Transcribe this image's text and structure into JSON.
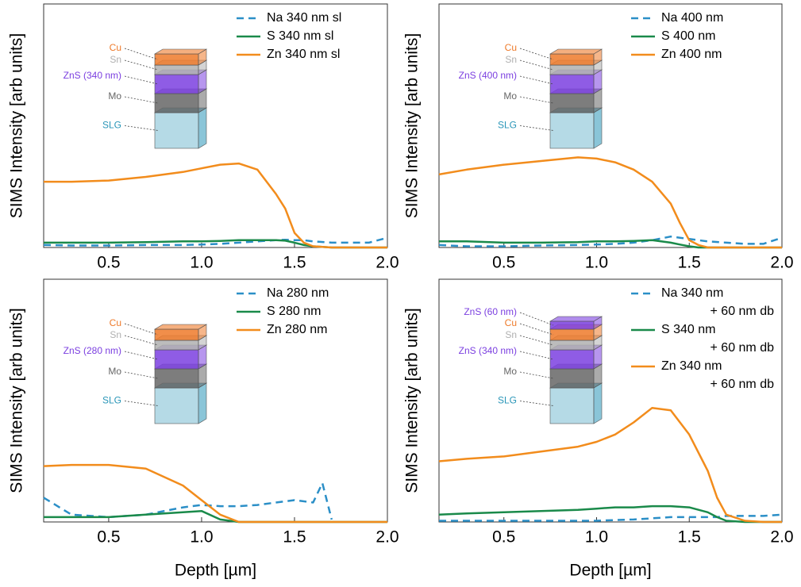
{
  "chart_data": [
    {
      "type": "line",
      "ylabel": "SIMS Intensity [arb units]",
      "xlim": [
        0.15,
        2.0
      ],
      "ylim": [
        0,
        1
      ],
      "xticks": [
        0.5,
        {
          "value": 1,
          "label": "1.0"
        },
        1.5,
        {
          "value": 2,
          "label": "2.0"
        }
      ],
      "legend": "upper right",
      "layers": [
        {
          "label": "Cu",
          "color": "#ee7a2a"
        },
        {
          "label": "Sn",
          "color": "#b0b0b0"
        },
        {
          "label": "ZnS (340 nm)",
          "color": "#7b3fe0"
        },
        {
          "label": "Mo",
          "color": "#666666"
        },
        {
          "label": "SLG",
          "color": "#2a96b8"
        }
      ],
      "x": [
        0.15,
        0.3,
        0.5,
        0.7,
        0.9,
        1.0,
        1.1,
        1.2,
        1.3,
        1.4,
        1.45,
        1.5,
        1.55,
        1.6,
        1.7,
        1.8,
        1.9,
        2.0
      ],
      "series": [
        {
          "name": "Na 340 nm sl",
          "color": "#2b8fc7",
          "dashed": true,
          "values": [
            0.01,
            0.008,
            0.008,
            0.01,
            0.01,
            0.012,
            0.015,
            0.02,
            0.025,
            0.03,
            0.032,
            0.03,
            0.03,
            0.025,
            0.02,
            0.02,
            0.02,
            0.04
          ]
        },
        {
          "name": "S 340 nm sl",
          "color": "#1a8a4a",
          "values": [
            0.02,
            0.02,
            0.02,
            0.022,
            0.025,
            0.025,
            0.027,
            0.03,
            0.03,
            0.03,
            0.028,
            0.02,
            0.01,
            0.005,
            0,
            0,
            0,
            0
          ]
        },
        {
          "name": "Zn 340 nm sl",
          "color": "#f28c1c",
          "values": [
            0.27,
            0.27,
            0.275,
            0.29,
            0.31,
            0.325,
            0.34,
            0.345,
            0.32,
            0.22,
            0.16,
            0.06,
            0.02,
            0.005,
            0,
            0,
            0,
            0
          ]
        }
      ]
    },
    {
      "type": "line",
      "ylabel": "SIMS Intensity [arb units]",
      "xlim": [
        0.15,
        2.0
      ],
      "ylim": [
        0,
        1
      ],
      "xticks": [
        0.5,
        {
          "value": 1,
          "label": "1.0"
        },
        1.5,
        {
          "value": 2,
          "label": "2.0"
        }
      ],
      "legend": "upper right",
      "layers": [
        {
          "label": "Cu",
          "color": "#ee7a2a"
        },
        {
          "label": "Sn",
          "color": "#b0b0b0"
        },
        {
          "label": "ZnS (400 nm)",
          "color": "#7b3fe0"
        },
        {
          "label": "Mo",
          "color": "#666666"
        },
        {
          "label": "SLG",
          "color": "#2a96b8"
        }
      ],
      "x": [
        0.15,
        0.3,
        0.5,
        0.7,
        0.9,
        1.0,
        1.1,
        1.2,
        1.3,
        1.4,
        1.45,
        1.5,
        1.55,
        1.6,
        1.7,
        1.8,
        1.9,
        2.0
      ],
      "series": [
        {
          "name": "Na 400 nm",
          "color": "#2b8fc7",
          "dashed": true,
          "values": [
            0.01,
            0.005,
            0.005,
            0.008,
            0.01,
            0.012,
            0.015,
            0.02,
            0.03,
            0.045,
            0.04,
            0.035,
            0.03,
            0.025,
            0.02,
            0.015,
            0.015,
            0.04
          ]
        },
        {
          "name": "S 400 nm",
          "color": "#1a8a4a",
          "values": [
            0.025,
            0.025,
            0.02,
            0.02,
            0.022,
            0.025,
            0.025,
            0.027,
            0.03,
            0.02,
            0.012,
            0.005,
            0,
            0,
            0,
            0,
            0,
            0
          ]
        },
        {
          "name": "Zn 400 nm",
          "color": "#f28c1c",
          "values": [
            0.3,
            0.32,
            0.34,
            0.355,
            0.37,
            0.365,
            0.35,
            0.32,
            0.27,
            0.18,
            0.1,
            0.03,
            0.01,
            0,
            0,
            0,
            0,
            0
          ]
        }
      ]
    },
    {
      "type": "line",
      "ylabel": "SIMS Intensity [arb units]",
      "xlabel": "Depth [µm]",
      "xlim": [
        0.15,
        2.0
      ],
      "ylim": [
        0,
        1
      ],
      "xticks": [
        0.5,
        {
          "value": 1,
          "label": "1.0"
        },
        1.5,
        {
          "value": 2,
          "label": "2.0"
        }
      ],
      "legend": "upper right",
      "layers": [
        {
          "label": "Cu",
          "color": "#ee7a2a"
        },
        {
          "label": "Sn",
          "color": "#b0b0b0"
        },
        {
          "label": "ZnS (280 nm)",
          "color": "#7b3fe0"
        },
        {
          "label": "Mo",
          "color": "#666666"
        },
        {
          "label": "SLG",
          "color": "#2a96b8"
        }
      ],
      "x": [
        0.15,
        0.3,
        0.5,
        0.7,
        0.9,
        1.0,
        1.1,
        1.2,
        1.3,
        1.4,
        1.5,
        1.6,
        1.65,
        1.7,
        1.8,
        1.9,
        2.0
      ],
      "series": [
        {
          "name": "Na 280 nm",
          "color": "#2b8fc7",
          "dashed": true,
          "values": [
            0.1,
            0.03,
            0.02,
            0.03,
            0.06,
            0.07,
            0.065,
            0.065,
            0.07,
            0.08,
            0.09,
            0.08,
            0.16,
            0.01,
            null,
            null,
            null
          ]
        },
        {
          "name": "S 280 nm",
          "color": "#1a8a4a",
          "values": [
            0.02,
            0.02,
            0.02,
            0.03,
            0.04,
            0.045,
            0.01,
            0,
            0,
            0,
            0,
            0,
            0,
            0,
            0,
            0,
            0
          ]
        },
        {
          "name": "Zn 280 nm",
          "color": "#f28c1c",
          "values": [
            0.23,
            0.235,
            0.235,
            0.22,
            0.15,
            0.09,
            0.03,
            0,
            0,
            0,
            0,
            0,
            0,
            0,
            0,
            0,
            0
          ]
        }
      ]
    },
    {
      "type": "line",
      "ylabel": "SIMS Intensity [arb units]",
      "xlabel": "Depth [µm]",
      "xlim": [
        0.15,
        2.0
      ],
      "ylim": [
        0,
        1
      ],
      "xticks": [
        0.5,
        {
          "value": 1,
          "label": "1.0"
        },
        1.5,
        {
          "value": 2,
          "label": "2.0"
        }
      ],
      "legend": "upper right",
      "layers": [
        {
          "label": "ZnS (60 nm)",
          "color": "#7b3fe0"
        },
        {
          "label": "Cu",
          "color": "#ee7a2a"
        },
        {
          "label": "Sn",
          "color": "#b0b0b0"
        },
        {
          "label": "ZnS (340 nm)",
          "color": "#7b3fe0"
        },
        {
          "label": "Mo",
          "color": "#666666"
        },
        {
          "label": "SLG",
          "color": "#2a96b8"
        }
      ],
      "x": [
        0.15,
        0.3,
        0.5,
        0.7,
        0.9,
        1.0,
        1.1,
        1.2,
        1.3,
        1.4,
        1.5,
        1.6,
        1.65,
        1.7,
        1.8,
        1.9,
        2.0
      ],
      "series": [
        {
          "name": "Na 340 nm + 60 nm db",
          "color": "#2b8fc7",
          "dashed": true,
          "values": [
            0.005,
            0.005,
            0.005,
            0.005,
            0.005,
            0.005,
            0.008,
            0.01,
            0.015,
            0.02,
            0.02,
            0.02,
            0.02,
            0.025,
            0.025,
            0.025,
            0.03
          ]
        },
        {
          "name": "S 340 nm + 60 nm db",
          "color": "#1a8a4a",
          "values": [
            0.03,
            0.035,
            0.04,
            0.045,
            0.05,
            0.055,
            0.06,
            0.06,
            0.065,
            0.065,
            0.06,
            0.04,
            0.02,
            0.005,
            0,
            0,
            0
          ]
        },
        {
          "name": "Zn 340 nm + 60 nm db",
          "color": "#f28c1c",
          "values": [
            0.25,
            0.26,
            0.27,
            0.29,
            0.31,
            0.33,
            0.36,
            0.41,
            0.47,
            0.46,
            0.36,
            0.21,
            0.1,
            0.03,
            0.005,
            0,
            0
          ]
        }
      ]
    }
  ]
}
